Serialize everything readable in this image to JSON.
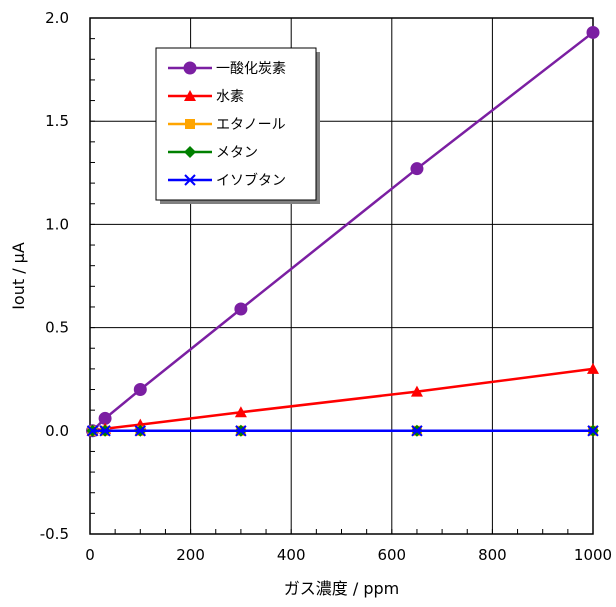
{
  "chart_data": {
    "type": "line",
    "title": "",
    "xlabel": "ガス濃度 / ppm",
    "ylabel": "Iout / μA",
    "xlim": [
      0,
      1000
    ],
    "ylim": [
      -0.5,
      2.0
    ],
    "xticks": [
      0,
      200,
      400,
      600,
      800,
      1000
    ],
    "yticks": [
      -0.5,
      0.0,
      0.5,
      1.0,
      1.5,
      2.0
    ],
    "xtick_labels": [
      "0",
      "200",
      "400",
      "600",
      "800",
      "1000"
    ],
    "ytick_labels": [
      "-0.5",
      "0.0",
      "0.5",
      "1.0",
      "1.5",
      "2.0"
    ],
    "grid": true,
    "legend_position": "top-left",
    "series": [
      {
        "name": "一酸化炭素",
        "color": "#7B1FA2",
        "marker": "circle",
        "x": [
          5,
          30,
          100,
          300,
          650,
          1000
        ],
        "y": [
          0.0,
          0.06,
          0.2,
          0.59,
          1.27,
          1.93
        ]
      },
      {
        "name": "水素",
        "color": "#FF0000",
        "marker": "triangle",
        "x": [
          5,
          30,
          100,
          300,
          650,
          1000
        ],
        "y": [
          0.0,
          0.01,
          0.03,
          0.09,
          0.19,
          0.3
        ]
      },
      {
        "name": "エタノール",
        "color": "#FFA500",
        "marker": "square",
        "x": [
          5,
          30,
          100,
          300,
          650,
          1000
        ],
        "y": [
          0.0,
          0.0,
          0.0,
          0.0,
          0.0,
          0.0
        ]
      },
      {
        "name": "メタン",
        "color": "#008000",
        "marker": "diamond",
        "x": [
          5,
          30,
          100,
          300,
          650,
          1000
        ],
        "y": [
          0.0,
          0.0,
          0.0,
          0.0,
          0.0,
          0.0
        ]
      },
      {
        "name": "イソブタン",
        "color": "#0000FF",
        "marker": "x",
        "x": [
          5,
          30,
          100,
          300,
          650,
          1000
        ],
        "y": [
          0.0,
          0.0,
          0.0,
          0.0,
          0.0,
          0.0
        ]
      }
    ]
  }
}
